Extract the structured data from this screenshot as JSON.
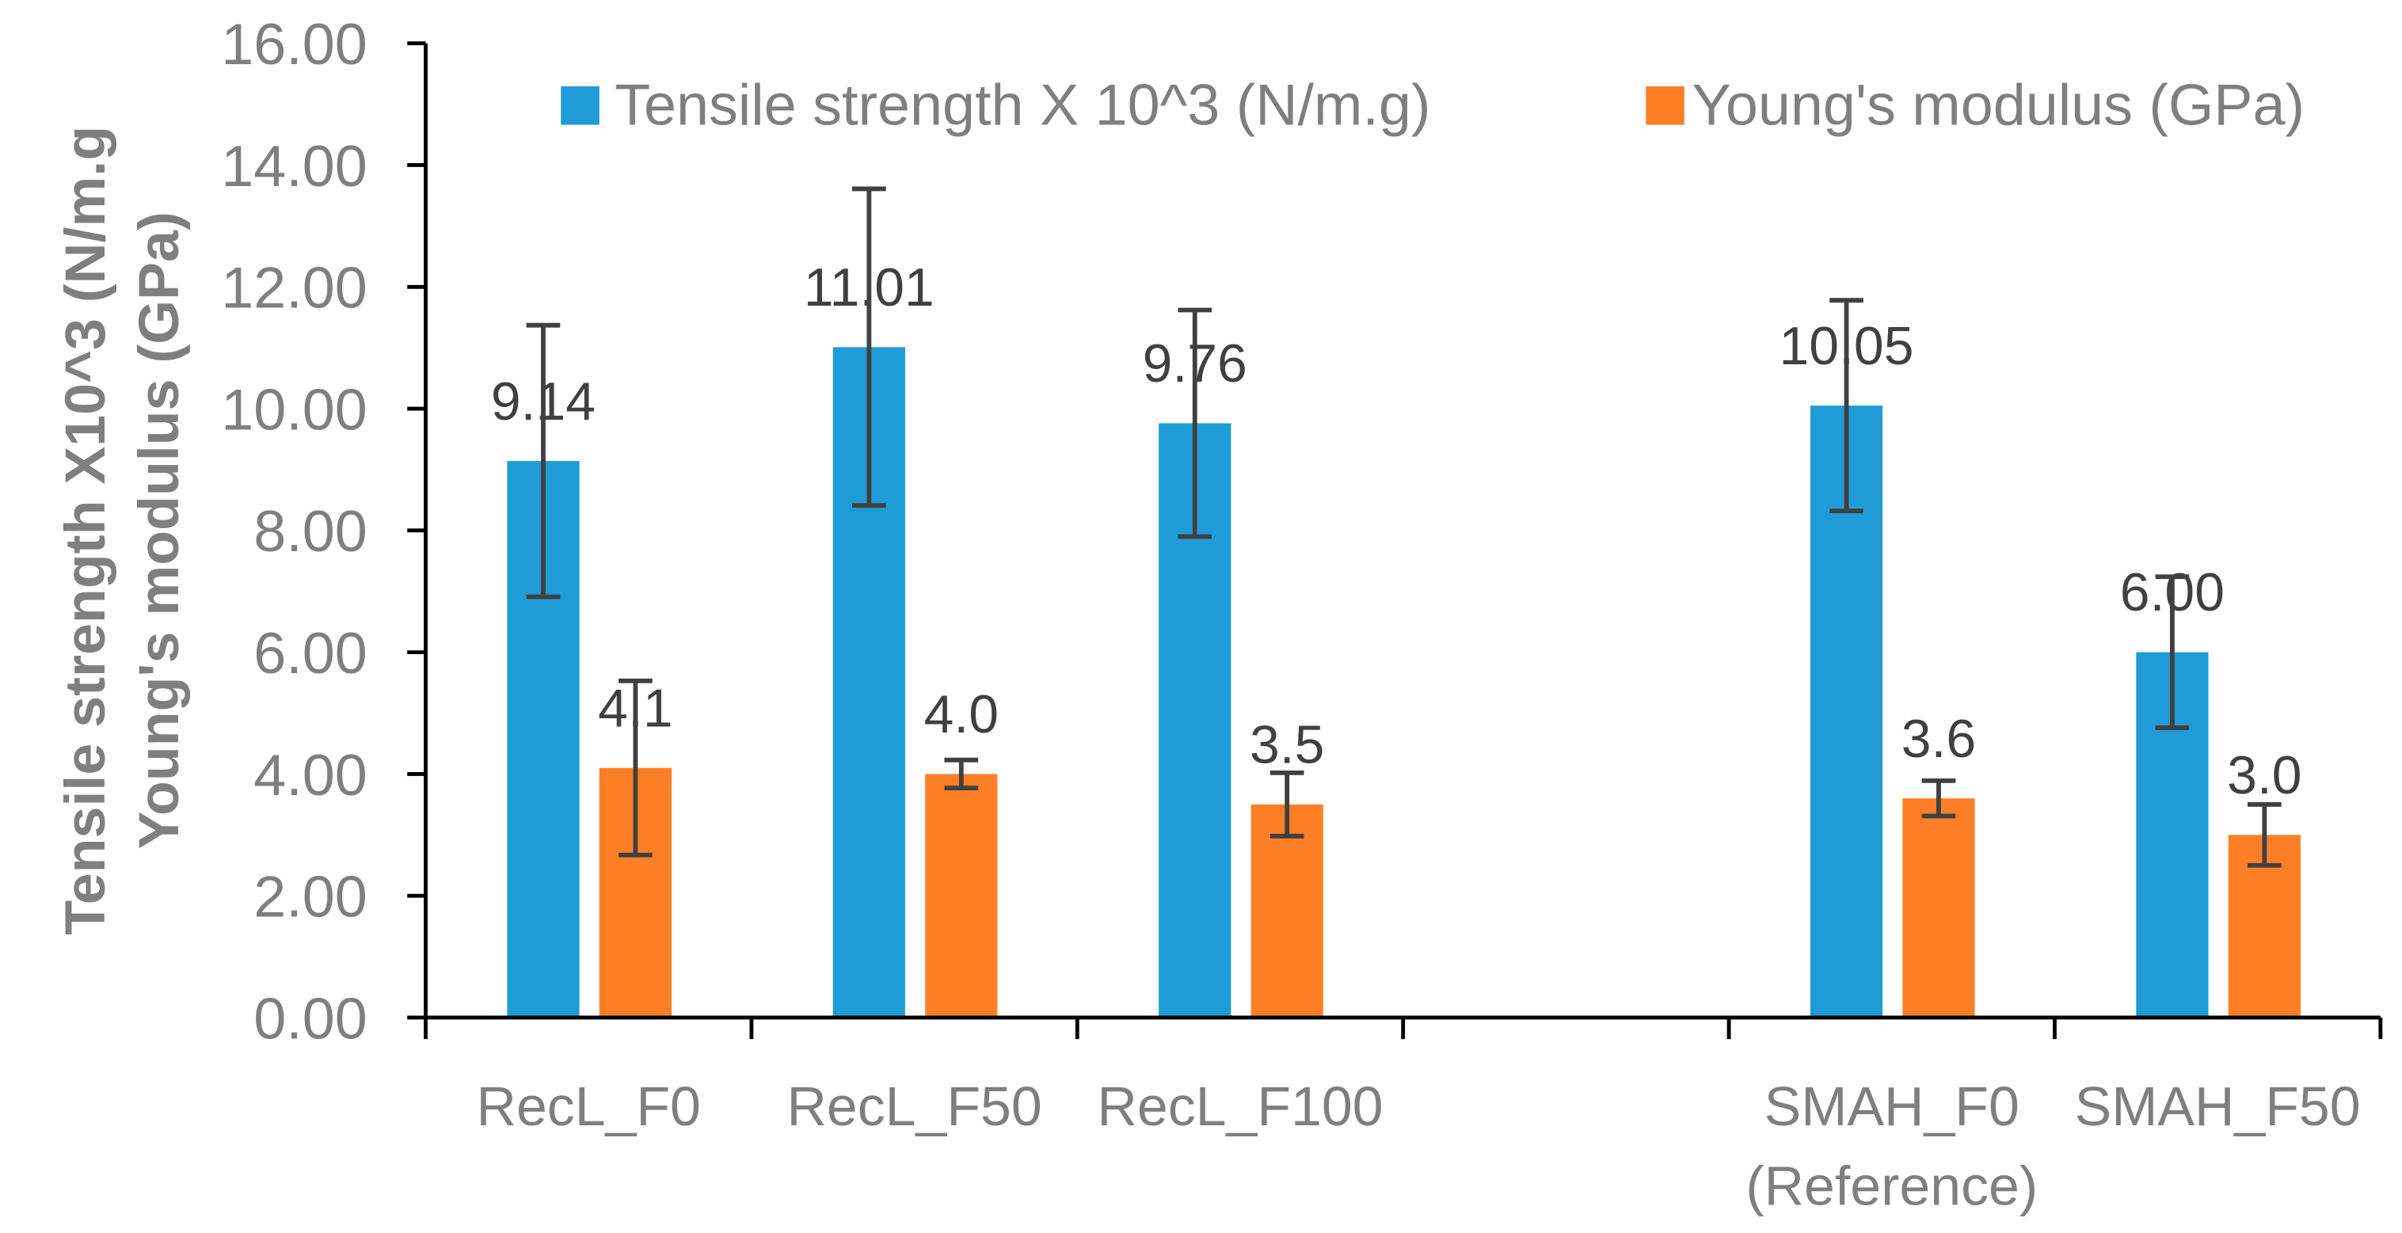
{
  "chart_data": {
    "type": "bar",
    "categories": [
      "RecL_F0",
      "RecL_F50",
      "RecL_F100",
      null,
      "SMAH_F0",
      "SMAH_F50"
    ],
    "category_sublabels": [
      null,
      null,
      null,
      null,
      "(Reference)",
      null
    ],
    "series": [
      {
        "name": "Tensile strength X 10^3 (N/m.g)",
        "color": "#1F9BD7",
        "values": [
          9.14,
          11.01,
          9.76,
          null,
          10.05,
          6.0
        ],
        "labels": [
          "9.14",
          "11.01",
          "9.76",
          null,
          "10.05",
          "6.00"
        ],
        "errors": [
          2.23,
          2.6,
          1.86,
          null,
          1.73,
          1.24
        ]
      },
      {
        "name": "Young's modulus (GPa)",
        "color": "#FF7F27",
        "values": [
          4.1,
          4.0,
          3.5,
          null,
          3.6,
          3.0
        ],
        "labels": [
          "4.1",
          "4.0",
          "3.5",
          null,
          "3.6",
          "3.0"
        ],
        "errors": [
          1.43,
          0.23,
          0.52,
          null,
          0.29,
          0.5
        ]
      }
    ],
    "ylabel": [
      "Tensile strength X10^3 (N/m.g",
      "Young's modulus (GPa)"
    ],
    "ylim": [
      0,
      16
    ],
    "yticks": [
      0,
      2,
      4,
      6,
      8,
      10,
      12,
      14,
      16
    ],
    "ytick_labels": [
      "0.00",
      "2.00",
      "4.00",
      "6.00",
      "8.00",
      "10.00",
      "12.00",
      "14.00",
      "16.00"
    ],
    "grid": false,
    "legend": "top",
    "colors": {
      "text": "#7F7F7F",
      "data_label": "#404040",
      "error_bar": "#404040",
      "axis": "#000000"
    }
  }
}
